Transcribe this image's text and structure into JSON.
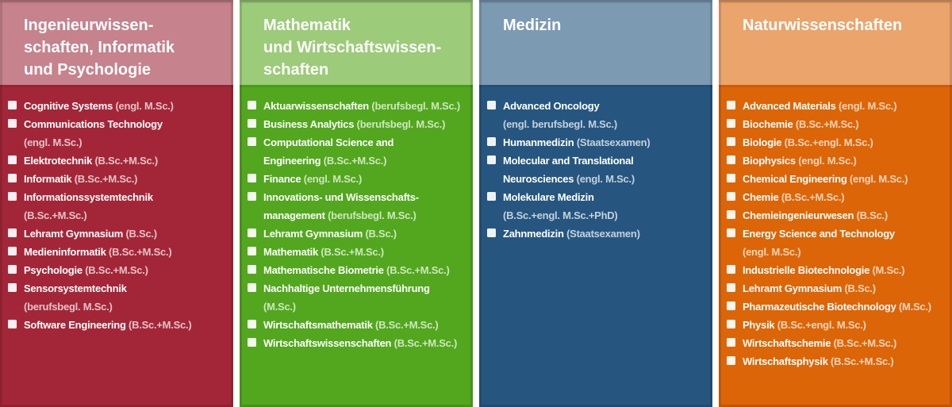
{
  "page": {
    "background": "#ffffff",
    "gap_color": "#ffffff"
  },
  "bullet_icon": "white-square",
  "columns": [
    {
      "id": "ingenieurwissenschaften-informatik-psychologie",
      "title_lines": [
        "Ingenieurwissen-",
        "schaften, Informatik",
        "und Psychologie"
      ],
      "colors": {
        "body": "#A32638",
        "header": "#C6828D"
      },
      "items": [
        {
          "lines": [
            {
              "w": "Cognitive Systems ",
              "m": "(engl. M.Sc.)"
            }
          ]
        },
        {
          "lines": [
            {
              "w": "Communications Technology"
            },
            {
              "m": "(engl. M.Sc.)"
            }
          ]
        },
        {
          "lines": [
            {
              "w": "Elektrotechnik ",
              "m": "(B.Sc.+M.Sc.)"
            }
          ]
        },
        {
          "lines": [
            {
              "w": "Informatik ",
              "m": "(B.Sc.+M.Sc.)"
            }
          ]
        },
        {
          "lines": [
            {
              "w": "Informationssystemtechnik"
            },
            {
              "m": "(B.Sc.+M.Sc.)"
            }
          ]
        },
        {
          "lines": [
            {
              "w": "Lehramt Gymnasium ",
              "m": "(B.Sc.)"
            }
          ]
        },
        {
          "lines": [
            {
              "w": "Medieninformatik ",
              "m": "(B.Sc.+M.Sc.)"
            }
          ]
        },
        {
          "lines": [
            {
              "w": "Psychologie ",
              "m": "(B.Sc.+M.Sc.)"
            }
          ]
        },
        {
          "lines": [
            {
              "w": "Sensorsystemtechnik"
            },
            {
              "m": "(berufsbegl. M.Sc.)"
            }
          ]
        },
        {
          "lines": [
            {
              "w": "Software Engineering ",
              "m": "(B.Sc.+M.Sc.)"
            }
          ]
        }
      ]
    },
    {
      "id": "mathematik-wirtschaftswissenschaften",
      "title_lines": [
        "Mathematik",
        "und Wirtschaftswissen-",
        "schaften"
      ],
      "colors": {
        "body": "#52A71E",
        "header": "#9CCB79"
      },
      "items": [
        {
          "lines": [
            {
              "w": "Aktuarwissenschaften ",
              "m": "(berufsbegl. M.Sc.)"
            }
          ]
        },
        {
          "lines": [
            {
              "w": "Business Analytics ",
              "m": "(berufsbegl. M.Sc.)"
            }
          ]
        },
        {
          "lines": [
            {
              "w": "Computational Science and"
            },
            {
              "w": "Engineering ",
              "m": "(B.Sc.+M.Sc.)"
            }
          ]
        },
        {
          "lines": [
            {
              "w": "Finance ",
              "m": "(engl. M.Sc.)"
            }
          ]
        },
        {
          "lines": [
            {
              "w": "Innovations- und Wissenschafts-"
            },
            {
              "w": "management ",
              "m": "(berufsbegl. M.Sc.)"
            }
          ]
        },
        {
          "lines": [
            {
              "w": "Lehramt Gymnasium ",
              "m": "(B.Sc.)"
            }
          ]
        },
        {
          "lines": [
            {
              "w": "Mathematik ",
              "m": "(B.Sc.+M.Sc.)"
            }
          ]
        },
        {
          "lines": [
            {
              "w": "Mathematische Biometrie ",
              "m": "(B.Sc.+M.Sc.)"
            }
          ]
        },
        {
          "lines": [
            {
              "w": "Nachhaltige Unternehmensführung"
            },
            {
              "m": "(M.Sc.)"
            }
          ]
        },
        {
          "lines": [
            {
              "w": "Wirtschaftsmathematik ",
              "m": "(B.Sc.+M.Sc.)"
            }
          ]
        },
        {
          "lines": [
            {
              "w": "Wirtschaftswissenschaften ",
              "m": "(B.Sc.+M.Sc.)"
            }
          ]
        }
      ]
    },
    {
      "id": "medizin",
      "title_lines": [
        "Medizin"
      ],
      "colors": {
        "body": "#26567F",
        "header": "#7D9AB3"
      },
      "items": [
        {
          "lines": [
            {
              "w": "Advanced Oncology"
            },
            {
              "m": "(engl. berufsbegl. M.Sc.)"
            }
          ]
        },
        {
          "lines": [
            {
              "w": "Humanmedizin ",
              "m": "(Staatsexamen)"
            }
          ]
        },
        {
          "lines": [
            {
              "w": "Molecular and Translational"
            },
            {
              "w": "Neurosciences ",
              "m": "(engl. M.Sc.)"
            }
          ]
        },
        {
          "lines": [
            {
              "w": "Molekulare Medizin"
            },
            {
              "m": "(B.Sc.+engl. M.Sc.+PhD)"
            }
          ]
        },
        {
          "lines": [
            {
              "w": "Zahnmedizin ",
              "m": "(Staatsexamen)"
            }
          ]
        }
      ]
    },
    {
      "id": "naturwissenschaften",
      "title_lines": [
        "Naturwissenschaften"
      ],
      "colors": {
        "body": "#DC6508",
        "header": "#EAA46C"
      },
      "items": [
        {
          "lines": [
            {
              "w": "Advanced Materials ",
              "m": "(engl. M.Sc.)"
            }
          ]
        },
        {
          "lines": [
            {
              "w": "Biochemie ",
              "m": "(B.Sc.+M.Sc.)"
            }
          ]
        },
        {
          "lines": [
            {
              "w": "Biologie ",
              "m": "(B.Sc.+engl. M.Sc.)"
            }
          ]
        },
        {
          "lines": [
            {
              "w": "Biophysics ",
              "m": "(engl. M.Sc.)"
            }
          ]
        },
        {
          "lines": [
            {
              "w": "Chemical Engineering ",
              "m": "(engl. M.Sc.)"
            }
          ]
        },
        {
          "lines": [
            {
              "w": "Chemie ",
              "m": "(B.Sc.+M.Sc.)"
            }
          ]
        },
        {
          "lines": [
            {
              "w": "Chemieingenieurwesen ",
              "m": "(B.Sc.)"
            }
          ]
        },
        {
          "lines": [
            {
              "w": "Energy Science and Technology"
            },
            {
              "m": "(engl. M.Sc.)"
            }
          ]
        },
        {
          "lines": [
            {
              "w": "Industrielle Biotechnologie ",
              "m": "(M.Sc.)"
            }
          ]
        },
        {
          "lines": [
            {
              "w": "Lehramt Gymnasium ",
              "m": "(B.Sc.)"
            }
          ]
        },
        {
          "lines": [
            {
              "w": "Pharmazeutische Biotechnology ",
              "m": "(M.Sc.)"
            }
          ]
        },
        {
          "lines": [
            {
              "w": "Physik ",
              "m": "(B.Sc.+engl. M.Sc.)"
            }
          ]
        },
        {
          "lines": [
            {
              "w": "Wirtschaftschemie ",
              "m": "(B.Sc.+M.Sc.)"
            }
          ]
        },
        {
          "lines": [
            {
              "w": "Wirtschaftsphysik ",
              "m": "(B.Sc.+M.Sc.)"
            }
          ]
        }
      ]
    }
  ]
}
